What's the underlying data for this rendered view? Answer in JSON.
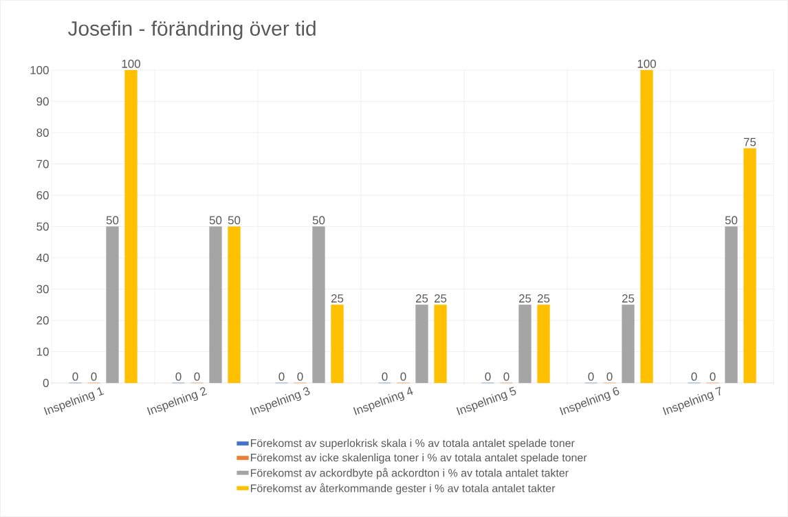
{
  "chart_data": {
    "type": "bar",
    "title": "Josefin - förändring över tid",
    "categories": [
      "Inspelning 1",
      "Inspelning 2",
      "Inspelning 3",
      "Inspelning 4",
      "Inspelning 5",
      "Inspelning 6",
      "Inspelning 7"
    ],
    "series": [
      {
        "name": "Förekomst av superlokrisk skala i % av totala antalet spelade toner",
        "color": "#4472c4",
        "values": [
          0,
          0,
          0,
          0,
          0,
          0,
          0
        ]
      },
      {
        "name": "Förekomst av icke skalenliga toner i % av totala antalet spelade toner",
        "color": "#ed7d31",
        "values": [
          0,
          0,
          0,
          0,
          0,
          0,
          0
        ]
      },
      {
        "name": "Förekomst av ackordbyte på ackordton i % av totala antalet takter",
        "color": "#a5a5a5",
        "values": [
          50,
          50,
          50,
          25,
          25,
          25,
          50
        ]
      },
      {
        "name": "Förekomst av återkommande gester i % av totala antalet takter",
        "color": "#ffc000",
        "values": [
          100,
          50,
          25,
          25,
          25,
          100,
          75
        ]
      }
    ],
    "ylim": [
      0,
      100
    ],
    "yticks": [
      0,
      10,
      20,
      30,
      40,
      50,
      60,
      70,
      80,
      90,
      100
    ],
    "grid": true,
    "legend": "bottom",
    "data_labels": true
  }
}
